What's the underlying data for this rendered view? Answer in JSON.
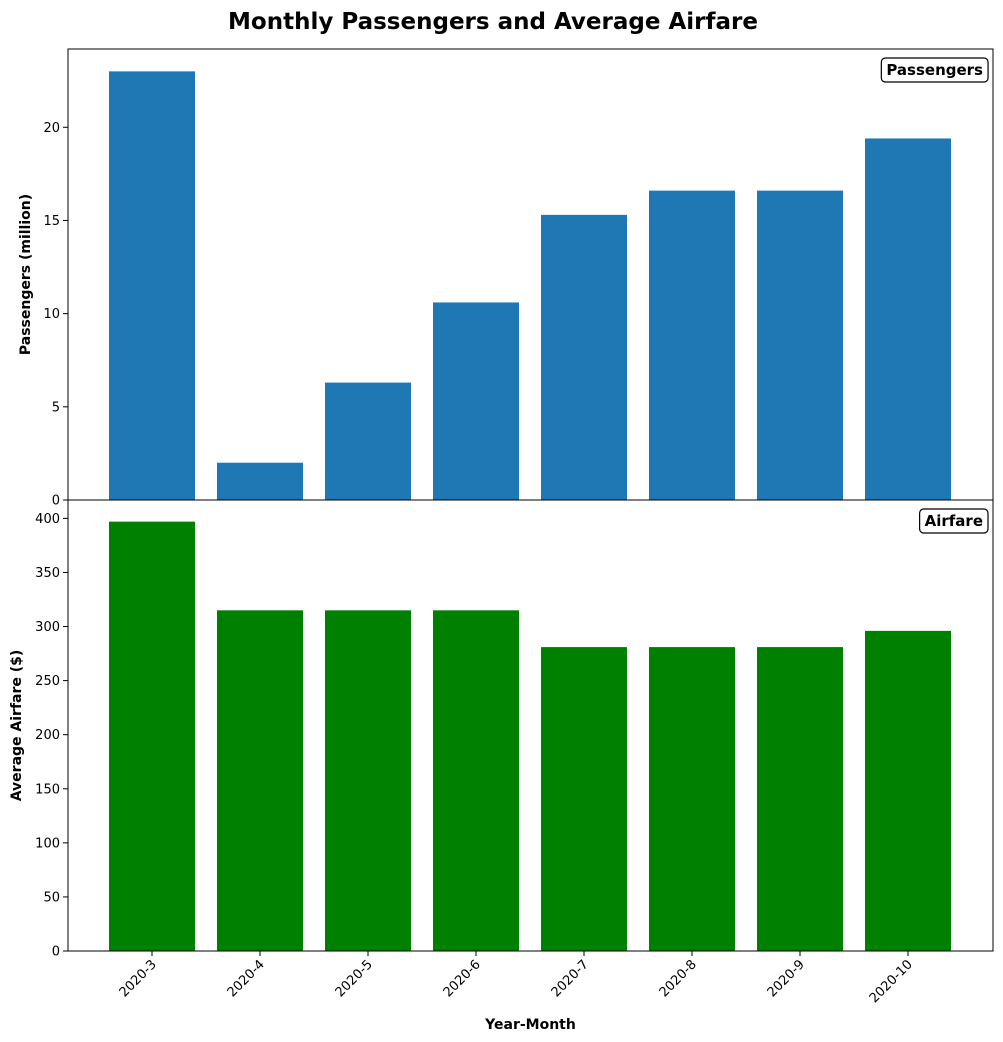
{
  "title": "Monthly Passengers and Average Airfare",
  "chart_data": [
    {
      "type": "bar",
      "panel_label": "Passengers",
      "categories": [
        "2020-3",
        "2020-4",
        "2020-5",
        "2020-6",
        "2020-7",
        "2020-8",
        "2020-9",
        "2020-10"
      ],
      "values": [
        23.0,
        2.0,
        6.3,
        10.6,
        15.3,
        16.6,
        16.6,
        19.4
      ],
      "ylabel": "Passengers (million)",
      "xlabel": "",
      "ylim": [
        0,
        24.2
      ],
      "yticks": [
        0,
        5,
        10,
        15,
        20
      ],
      "color": "#1f77b4",
      "legend_position": "top-right"
    },
    {
      "type": "bar",
      "panel_label": "Airfare",
      "categories": [
        "2020-3",
        "2020-4",
        "2020-5",
        "2020-6",
        "2020-7",
        "2020-8",
        "2020-9",
        "2020-10"
      ],
      "values": [
        397,
        315,
        315,
        315,
        281,
        281,
        281,
        296
      ],
      "ylabel": "Average Airfare ($)",
      "xlabel": "Year-Month",
      "ylim": [
        0,
        417
      ],
      "yticks": [
        0,
        50,
        100,
        150,
        200,
        250,
        300,
        350,
        400
      ],
      "color": "#008000",
      "legend_position": "top-right"
    }
  ]
}
